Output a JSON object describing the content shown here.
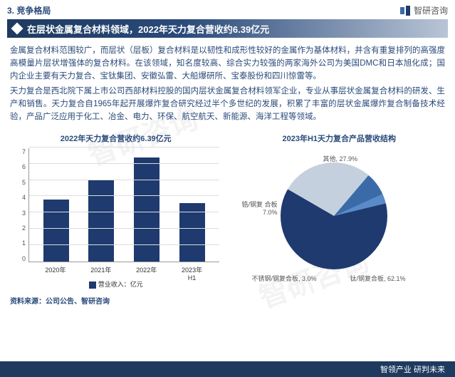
{
  "watermark": "智研咨询",
  "header": {
    "section_number": "3. 竞争格局",
    "logo_text": "智研咨询"
  },
  "title_bar": {
    "text": "在层状金属复合材料领域，2022年天力复合营收约6.39亿元"
  },
  "body": {
    "p1": "金属复合材料范围较广，而层状（层板）复合材料是以韧性和成形性较好的金属作为基体材料，并含有重复排列的高强度高模量片层状增强体的复合材料。在该领域，知名度较高、综合实力较强的两家海外公司为美国DMC和日本旭化成；国内企业主要有天力复合、宝钛集团、安徽弘雷、大船爆研所、宝泰股份和四川惊雷等。",
    "p2": "天力复合是西北院下属上市公司西部材料控股的国内层状金属复合材料领军企业，专业从事层状金属复合材料的研发、生产和销售。天力复合自1965年起开展爆炸复合研究经过半个多世纪的发展，积累了丰富的层状金属爆炸复合制备技术经验，产品广泛应用于化工、冶金、电力、环保、航空航天、新能源、海洋工程等领域。"
  },
  "bar_chart": {
    "title": "2022年天力复合营收约6.39亿元",
    "type": "bar",
    "categories": [
      "2020年",
      "2021年",
      "2022年",
      "2023年H1"
    ],
    "values": [
      3.8,
      5.0,
      6.39,
      3.6
    ],
    "y_max": 7,
    "y_ticks": [
      0,
      1,
      2,
      3,
      4,
      5,
      6,
      7
    ],
    "bar_color": "#1e3a6e",
    "grid_color": "#dddddd",
    "axis_color": "#999999",
    "legend_label": "营业收入：亿元",
    "label_fontsize": 9
  },
  "pie_chart": {
    "title": "2023年H1天力复合产品营收结构",
    "type": "pie",
    "slices": [
      {
        "label": "钛/钢复合板",
        "value": 62.1,
        "color": "#1e3a6e",
        "display": "钛/钢复合板, 62.1%"
      },
      {
        "label": "其他",
        "value": 27.9,
        "color": "#c5d0de",
        "display": "其他, 27.9%"
      },
      {
        "label": "锆/钢复合板",
        "value": 7.0,
        "color": "#3a6aa8",
        "display": "锆/钢复\n合板\n7.0%"
      },
      {
        "label": "不锈钢/钢复合板",
        "value": 3.0,
        "color": "#5a8ac8",
        "display": "不锈钢/钢复合板, 3.0%"
      }
    ],
    "background_color": "#ffffff",
    "label_fontsize": 9
  },
  "source": "资料来源：公司公告、智研咨询",
  "footer": "智领产业  研判未来"
}
